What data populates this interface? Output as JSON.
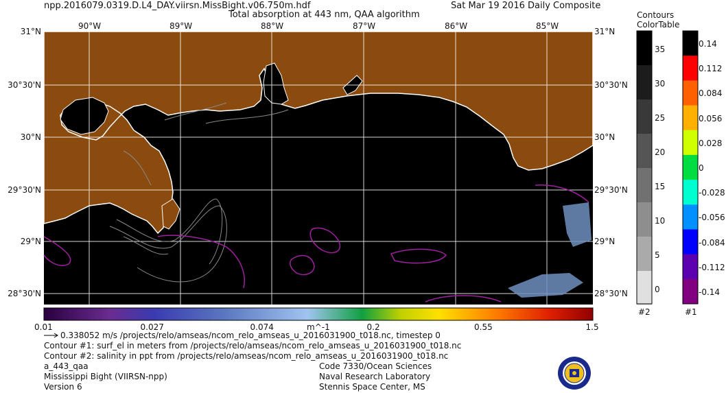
{
  "header": {
    "filename": "npp.2016079.0319.D.L4_DAY.viirsn.MissBight.v06.750m.hdf",
    "title": "Total absorption at 443 nm, QAA algorithm",
    "date": "Sat Mar 19 2016 Daily Composite"
  },
  "map": {
    "lon_labels": [
      "90°W",
      "89°W",
      "88°W",
      "87°W",
      "86°W",
      "85°W"
    ],
    "lat_labels_left": [
      "31°N",
      "30°30'N",
      "30°N",
      "29°30'N",
      "29°N",
      "28°30'N"
    ],
    "lat_labels_right": [
      "31°N",
      "30°30'N",
      "30°N",
      "29°30'N",
      "29°N",
      "28°30'N"
    ],
    "extent": {
      "lon_min": -90.4,
      "lon_max": -84.45,
      "lat_min": 28.4,
      "lat_max": 31.0
    },
    "colors": {
      "land": "#8b4a0e",
      "ocean": "#000000",
      "coast": "#ffffff",
      "contour_salinity": "#a020a0",
      "contour_surf": "#9a9a9a"
    }
  },
  "colorbar": {
    "ticks": [
      "0.01",
      "0.027",
      "0.074",
      "m^-1",
      "0.2",
      "0.55",
      "1.5"
    ],
    "scale": "log"
  },
  "legend_contours": {
    "title_line1": "Contours",
    "title_line2": "ColorTable",
    "gray_labels": [
      "35",
      "30",
      "25",
      "20",
      "15",
      "10",
      "5",
      "0"
    ],
    "gray_id": "#2",
    "color_labels": [
      "0.14",
      "0.112",
      "0.084",
      "0.056",
      "0.028",
      "0",
      "-0.028",
      "-0.056",
      "-0.084",
      "-0.112",
      "-0.14"
    ],
    "color_id": "#1",
    "gray_colors": [
      "#000000",
      "#1c1c1c",
      "#393939",
      "#555555",
      "#717171",
      "#8e8e8e",
      "#aaaaaa",
      "#e0e0e0",
      "#ffffff"
    ],
    "color_colors": [
      "#000000",
      "#ff0000",
      "#ff6000",
      "#ffb000",
      "#d0ff00",
      "#00dd40",
      "#00ffd0",
      "#0090ff",
      "#0000ff",
      "#5a00b0",
      "#800080"
    ]
  },
  "footer": {
    "vector_note": "0.338052 m/s /projects/relo/amseas/ncom_relo_amseas_u_2016031900_t018.nc, timestep 0",
    "contour1": "Contour #1: surf_el in meters from /projects/relo/amseas/ncom_relo_amseas_u_2016031900_t018.nc",
    "contour2": "Contour #2: salinity in ppt from /projects/relo/amseas/ncom_relo_amseas_u_2016031900_t018.nc",
    "product": "a_443_qaa",
    "region": "Mississippi Bight (VIIRSN-npp)",
    "version": "Version 6",
    "code": "Code 7330/Ocean Sciences",
    "lab": "Naval Research Laboratory",
    "location": "Stennis Space Center, MS"
  }
}
